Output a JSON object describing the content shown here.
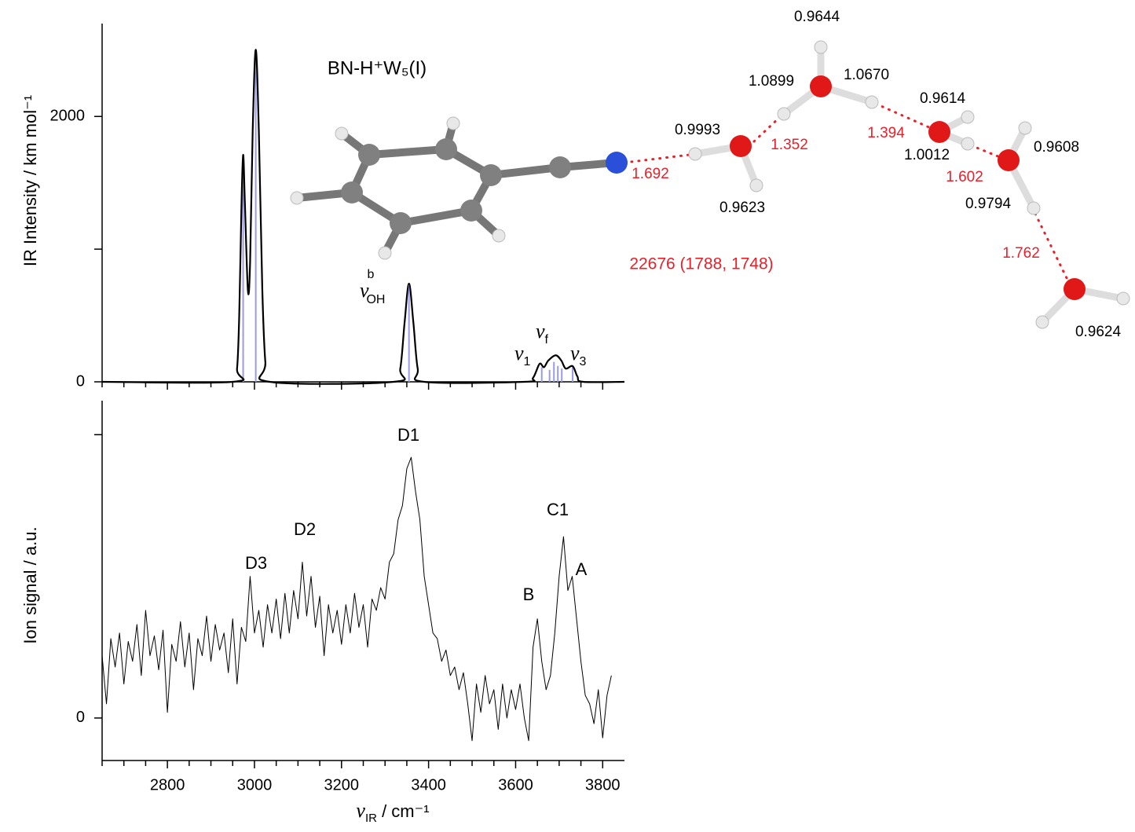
{
  "chart_data": [
    {
      "type": "line",
      "title": "BN-H⁺W₅(I)",
      "ylabel": "IR Intensity / km mol⁻¹",
      "xlim": [
        2650,
        3850
      ],
      "ylim": [
        0,
        2700
      ],
      "yticks": [
        0,
        2000
      ],
      "yminorticks": [
        1000
      ],
      "series": [
        {
          "color": "#000000",
          "x": [
            2650,
            2950,
            2960,
            2965,
            2970,
            2974,
            2978,
            2985,
            2990,
            2996,
            3003,
            3010,
            3018,
            3025,
            3035,
            3320,
            3335,
            3345,
            3355,
            3365,
            3375,
            3390,
            3620,
            3640,
            3655,
            3665,
            3675,
            3692,
            3705,
            3715,
            3731,
            3742,
            3755,
            3850
          ],
          "values": [
            0,
            0,
            100,
            500,
            1300,
            1710,
            1350,
            686,
            900,
            1900,
            2503,
            1900,
            700,
            150,
            0,
            0,
            100,
            450,
            740,
            450,
            100,
            0,
            0,
            30,
            136,
            110,
            160,
            200,
            160,
            100,
            118,
            40,
            0,
            0
          ]
        }
      ],
      "sticks": {
        "color": "#9999ee",
        "x": [
          2974,
          3003,
          3355,
          3660,
          3678,
          3688,
          3697,
          3706,
          3731
        ],
        "values": [
          1650,
          2450,
          720,
          110,
          90,
          150,
          120,
          100,
          110
        ]
      },
      "annotations": [
        {
          "symbol": "ν",
          "sup": "b",
          "sub": "OH"
        },
        {
          "symbol": "ν",
          "sub": "f"
        },
        {
          "symbol": "ν",
          "sub": "1"
        },
        {
          "symbol": "ν",
          "sub": "3"
        }
      ]
    },
    {
      "type": "line",
      "xlabel": {
        "symbol": "ν",
        "sub": "IR",
        "text": " / cm⁻¹"
      },
      "ylabel": "Ion signal / a.u.",
      "xlim": [
        2650,
        3850
      ],
      "ylim": [
        -0.15,
        1.12
      ],
      "xticks": [
        2800,
        3000,
        3200,
        3400,
        3600,
        3800
      ],
      "xminorticks": [
        2650,
        2700,
        2750,
        2850,
        2900,
        2950,
        3050,
        3100,
        3150,
        3250,
        3300,
        3350,
        3450,
        3500,
        3550,
        3650,
        3700,
        3750
      ],
      "yticks": [
        0
      ],
      "yminorticks": [
        1
      ],
      "series": [
        {
          "color": "#000000",
          "x": [
            2650,
            2660,
            2670,
            2680,
            2690,
            2700,
            2710,
            2720,
            2730,
            2740,
            2750,
            2760,
            2770,
            2780,
            2790,
            2800,
            2810,
            2820,
            2830,
            2840,
            2850,
            2860,
            2870,
            2880,
            2890,
            2900,
            2910,
            2920,
            2930,
            2940,
            2950,
            2960,
            2970,
            2980,
            2990,
            3000,
            3010,
            3020,
            3030,
            3040,
            3050,
            3060,
            3070,
            3080,
            3090,
            3100,
            3110,
            3120,
            3130,
            3140,
            3150,
            3160,
            3170,
            3180,
            3190,
            3200,
            3210,
            3220,
            3230,
            3240,
            3250,
            3260,
            3270,
            3280,
            3290,
            3300,
            3310,
            3320,
            3330,
            3340,
            3350,
            3360,
            3370,
            3380,
            3390,
            3400,
            3410,
            3420,
            3430,
            3440,
            3450,
            3460,
            3470,
            3480,
            3490,
            3500,
            3510,
            3520,
            3530,
            3540,
            3550,
            3560,
            3570,
            3580,
            3590,
            3600,
            3610,
            3620,
            3630,
            3640,
            3650,
            3660,
            3670,
            3680,
            3690,
            3700,
            3710,
            3720,
            3730,
            3740,
            3750,
            3760,
            3770,
            3780,
            3790,
            3800,
            3810,
            3820
          ],
          "values": [
            0.22,
            0.05,
            0.28,
            0.18,
            0.3,
            0.12,
            0.27,
            0.2,
            0.33,
            0.15,
            0.38,
            0.22,
            0.29,
            0.17,
            0.31,
            0.02,
            0.26,
            0.2,
            0.34,
            0.18,
            0.3,
            0.1,
            0.28,
            0.22,
            0.36,
            0.2,
            0.33,
            0.24,
            0.3,
            0.16,
            0.35,
            0.12,
            0.32,
            0.27,
            0.5,
            0.3,
            0.38,
            0.25,
            0.4,
            0.3,
            0.42,
            0.28,
            0.44,
            0.3,
            0.45,
            0.35,
            0.55,
            0.36,
            0.5,
            0.32,
            0.43,
            0.22,
            0.4,
            0.3,
            0.38,
            0.26,
            0.4,
            0.3,
            0.44,
            0.32,
            0.4,
            0.25,
            0.42,
            0.38,
            0.46,
            0.42,
            0.55,
            0.58,
            0.7,
            0.75,
            0.88,
            0.92,
            0.8,
            0.7,
            0.5,
            0.4,
            0.3,
            0.28,
            0.2,
            0.24,
            0.15,
            0.18,
            0.1,
            0.16,
            0.05,
            -0.08,
            0.12,
            0.02,
            0.15,
            0.05,
            0.1,
            -0.04,
            0.12,
            0.0,
            0.1,
            0.03,
            0.12,
            0.0,
            -0.08,
            0.25,
            0.35,
            0.2,
            0.1,
            0.15,
            0.3,
            0.5,
            0.64,
            0.45,
            0.5,
            0.35,
            0.2,
            0.08,
            0.05,
            -0.02,
            0.1,
            -0.07,
            0.08,
            0.15
          ]
        }
      ],
      "annotations": [
        "D3",
        "D2",
        "D1",
        "B",
        "C1",
        "A"
      ]
    }
  ],
  "diagram": {
    "labels": [
      "0.9644",
      "1.0899",
      "1.0670",
      "0.9614",
      "0.9993",
      "1.0012",
      "0.9608",
      "0.9623",
      "0.9794",
      "0.9624"
    ],
    "hbonds": [
      "1.692",
      "1.352",
      "1.394",
      "1.602",
      "1.762"
    ],
    "energy": "22676 (1788, 1748)"
  }
}
